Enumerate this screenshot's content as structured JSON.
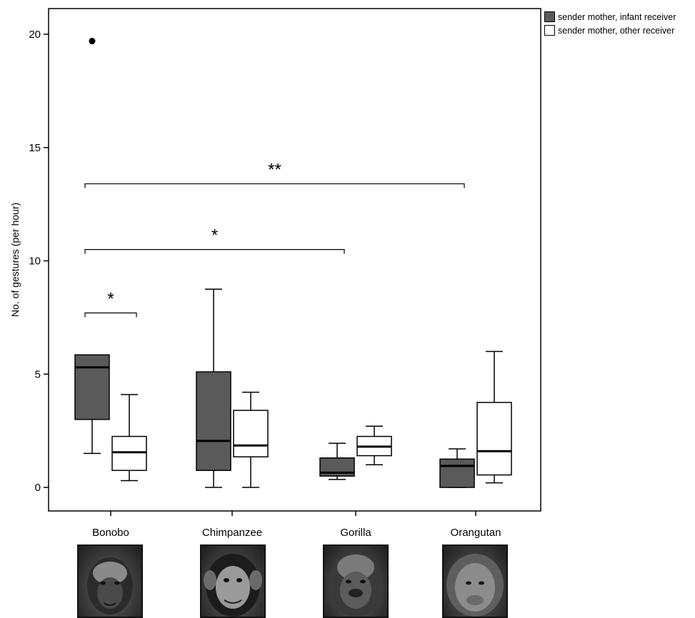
{
  "chart_data": {
    "type": "boxplot",
    "title": "",
    "xlabel": "",
    "ylabel": "No. of gestures (per hour)",
    "ylim": [
      -1,
      21
    ],
    "yticks": [
      0,
      5,
      10,
      15,
      20
    ],
    "categories": [
      "Bonobo",
      "Chimpanzee",
      "Gorilla",
      "Orangutan"
    ],
    "legend_position": "top-right",
    "series": [
      {
        "name": "sender mother, infant receiver",
        "color": "#5a5a5a",
        "boxes": [
          {
            "whisker_low": 1.5,
            "q1": 3.0,
            "median": 5.3,
            "q3": 5.85,
            "whisker_high": 5.85,
            "outliers": [
              19.7
            ]
          },
          {
            "whisker_low": 0.0,
            "q1": 0.75,
            "median": 2.05,
            "q3": 5.1,
            "whisker_high": 8.75,
            "outliers": []
          },
          {
            "whisker_low": 0.35,
            "q1": 0.5,
            "median": 0.65,
            "q3": 1.3,
            "whisker_high": 1.95,
            "outliers": []
          },
          {
            "whisker_low": 0.0,
            "q1": 0.0,
            "median": 0.95,
            "q3": 1.25,
            "whisker_high": 1.7,
            "outliers": []
          }
        ]
      },
      {
        "name": "sender mother, other receiver",
        "color": "#ffffff",
        "boxes": [
          {
            "whisker_low": 0.3,
            "q1": 0.75,
            "median": 1.55,
            "q3": 2.25,
            "whisker_high": 4.1,
            "outliers": []
          },
          {
            "whisker_low": 0.0,
            "q1": 1.35,
            "median": 1.85,
            "q3": 3.4,
            "whisker_high": 4.2,
            "outliers": []
          },
          {
            "whisker_low": 1.0,
            "q1": 1.4,
            "median": 1.8,
            "q3": 2.25,
            "whisker_high": 2.7,
            "outliers": []
          },
          {
            "whisker_low": 0.2,
            "q1": 0.55,
            "median": 1.6,
            "q3": 3.75,
            "whisker_high": 6.0,
            "outliers": []
          }
        ]
      }
    ],
    "annotations": [
      {
        "label": "*",
        "from_category": 0,
        "from_series": 0,
        "to_category": 0,
        "to_series": 1,
        "y": 7.7
      },
      {
        "label": "*",
        "from_category": 0,
        "from_series": 0,
        "to_category": 2,
        "to_series": 0,
        "y": 10.5
      },
      {
        "label": "**",
        "from_category": 0,
        "from_series": 0,
        "to_category": 3,
        "to_series": 0,
        "y": 13.4
      }
    ]
  },
  "photos": [
    {
      "subject": "Bonobo"
    },
    {
      "subject": "Chimpanzee"
    },
    {
      "subject": "Gorilla"
    },
    {
      "subject": "Orangutan"
    }
  ]
}
